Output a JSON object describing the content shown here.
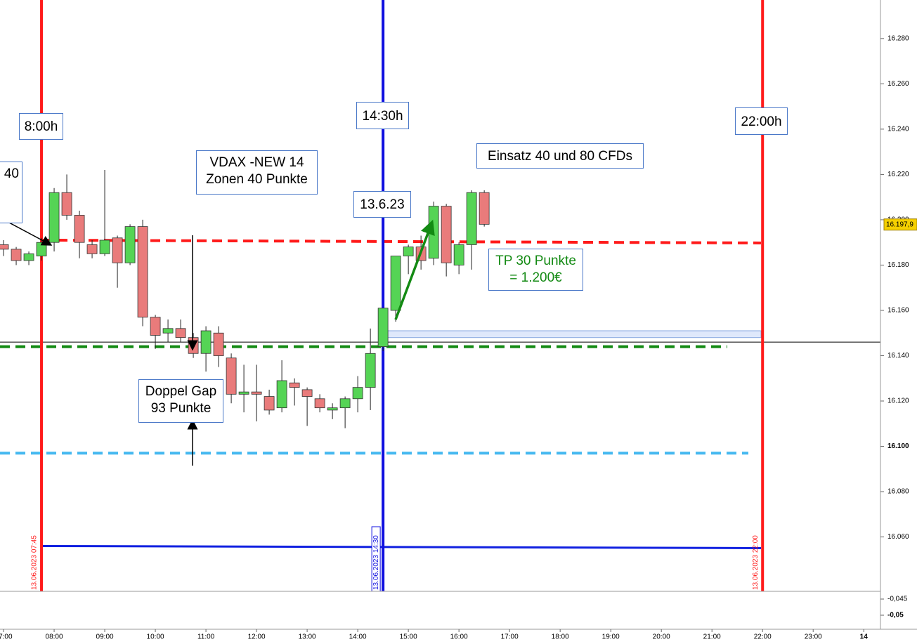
{
  "chart_data": {
    "type": "candlestick",
    "x": [
      "07:00",
      "07:15",
      "07:30",
      "07:45",
      "08:00",
      "08:15",
      "08:30",
      "08:45",
      "09:00",
      "09:15",
      "09:30",
      "09:45",
      "10:00",
      "10:15",
      "10:30",
      "10:45",
      "11:00",
      "11:15",
      "11:30",
      "11:45",
      "12:00",
      "12:15",
      "12:30",
      "12:45",
      "13:00",
      "13:15",
      "13:30",
      "13:45",
      "14:00",
      "14:15",
      "14:30",
      "14:45",
      "15:00",
      "15:15",
      "15:30",
      "15:45",
      "16:00",
      "16:15",
      "16:30"
    ],
    "open": [
      16189,
      16187,
      16182,
      16184,
      16190,
      16212,
      16202,
      16189,
      16185,
      16192,
      16181,
      16197,
      16157,
      16150,
      16152,
      16148,
      16141,
      16150,
      16139,
      16123,
      16124,
      16122,
      16117,
      16128,
      16125,
      16121,
      16116,
      16117,
      16121,
      16126,
      16144,
      16160,
      16184,
      16188,
      16183,
      16206,
      16180,
      16189,
      16212
    ],
    "high": [
      16191,
      16188,
      16186,
      16192,
      16214,
      16220,
      16204,
      16191,
      16222,
      16193,
      16198,
      16200,
      16158,
      16156,
      16156,
      16150,
      16153,
      16153,
      16141,
      16136,
      16136,
      16125,
      16138,
      16130,
      16126,
      16123,
      16119,
      16122,
      16131,
      16152,
      16161,
      16184,
      16189,
      16193,
      16208,
      16207,
      16190,
      16213,
      16213
    ],
    "low": [
      16184,
      16180,
      16180,
      16182,
      16186,
      16200,
      16183,
      16183,
      16184,
      16170,
      16180,
      16153,
      16143,
      16146,
      16146,
      16139,
      16133,
      16135,
      16119,
      16115,
      16111,
      16114,
      16115,
      16118,
      16109,
      16115,
      16112,
      16108,
      16115,
      16116,
      16142,
      16155,
      16176,
      16178,
      16180,
      16175,
      16176,
      16178,
      16197
    ],
    "close": [
      16187,
      16182,
      16185,
      16190,
      16212,
      16202,
      16190,
      16185,
      16191,
      16181,
      16197,
      16157,
      16149,
      16152,
      16148,
      16141,
      16151,
      16140,
      16123,
      16124,
      16123,
      16116,
      16129,
      16126,
      16122,
      16117,
      16117,
      16121,
      16126,
      16141,
      16161,
      16184,
      16188,
      16182,
      16206,
      16181,
      16189,
      16212,
      16198
    ],
    "up_color": "#55d455",
    "down_color": "#e97b7b",
    "ylim": [
      16036,
      16297
    ],
    "yticks": [
      {
        "value": 16060,
        "label": "16.060"
      },
      {
        "value": 16080,
        "label": "16.080"
      },
      {
        "value": 16100,
        "label": "16.100"
      },
      {
        "value": 16120,
        "label": "16.120"
      },
      {
        "value": 16140,
        "label": "16.140"
      },
      {
        "value": 16160,
        "label": "16.160"
      },
      {
        "value": 16180,
        "label": "16.180"
      },
      {
        "value": 16200,
        "label": "16.200"
      },
      {
        "value": 16220,
        "label": "16.220"
      },
      {
        "value": 16240,
        "label": "16.240"
      },
      {
        "value": 16260,
        "label": "16.260"
      },
      {
        "value": 16280,
        "label": "16.280"
      }
    ],
    "xlim": [
      6.93,
      24.33
    ],
    "xticks": [
      {
        "value": 7,
        "label": "07:00"
      },
      {
        "value": 8,
        "label": "08:00"
      },
      {
        "value": 9,
        "label": "09:00"
      },
      {
        "value": 10,
        "label": "10:00"
      },
      {
        "value": 11,
        "label": "11:00"
      },
      {
        "value": 12,
        "label": "12:00"
      },
      {
        "value": 13,
        "label": "13:00"
      },
      {
        "value": 14,
        "label": "14:00"
      },
      {
        "value": 15,
        "label": "15:00"
      },
      {
        "value": 16,
        "label": "16:00"
      },
      {
        "value": 17,
        "label": "17:00"
      },
      {
        "value": 18,
        "label": "18:00"
      },
      {
        "value": 19,
        "label": "19:00"
      },
      {
        "value": 20,
        "label": "20:00"
      },
      {
        "value": 21,
        "label": "21:00"
      },
      {
        "value": 22,
        "label": "22:00"
      },
      {
        "value": 23,
        "label": "23:00"
      },
      {
        "value": 24,
        "label": "14"
      }
    ],
    "last": {
      "value": 16197.9,
      "label": "16.197,9"
    },
    "levels": [
      {
        "value": 16191,
        "color": "#ff1a1a",
        "dashed": true
      },
      {
        "value": 16144,
        "color": "#138a13",
        "dashed": true
      },
      {
        "value": 16097,
        "color": "#45b8f0",
        "dashed": true
      },
      {
        "value": 16146,
        "color": "#000000",
        "dashed": false
      },
      {
        "value": 16056,
        "color": "#1020e0",
        "dashed": false
      }
    ],
    "zone": [
      16148,
      16151
    ],
    "vlines": [
      {
        "time": "07:45",
        "label": "13.06.2023 07:45",
        "color": "#ff1a1a"
      },
      {
        "time": "14:30",
        "label": "13.06.2023 14:30",
        "color": "#1010e0"
      },
      {
        "time": "22:00",
        "label": "13.06.2023 22:00",
        "color": "#ff1a1a"
      }
    ],
    "indicator_ticks": [
      {
        "value": -0.045,
        "label": "-0,045"
      },
      {
        "value": -0.05,
        "label": "-0,05"
      }
    ],
    "annotations": [
      {
        "lines": [
          "8:00h"
        ]
      },
      {
        "lines": [
          "40"
        ]
      },
      {
        "lines": [
          "VDAX -NEW 14",
          "Zonen 40 Punkte"
        ]
      },
      {
        "lines": [
          "14:30h"
        ]
      },
      {
        "lines": [
          "22:00h"
        ]
      },
      {
        "lines": [
          "Einsatz 40 und 80 CFDs"
        ]
      },
      {
        "lines": [
          "13.6.23"
        ]
      },
      {
        "lines": [
          "TP 30 Punkte",
          "= 1.200€"
        ]
      },
      {
        "lines": [
          "Doppel Gap",
          "93 Punkte"
        ]
      }
    ]
  }
}
